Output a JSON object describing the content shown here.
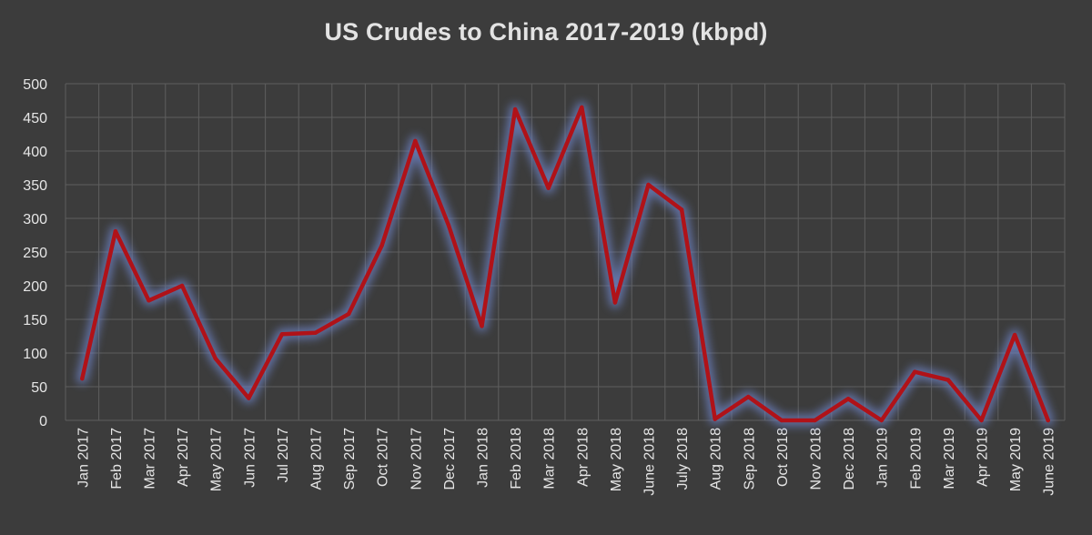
{
  "chart_data": {
    "type": "line",
    "title": "US Crudes to China 2017-2019 (kbpd)",
    "xlabel": "",
    "ylabel": "",
    "ylim": [
      0,
      500
    ],
    "yticks": [
      0,
      50,
      100,
      150,
      200,
      250,
      300,
      350,
      400,
      450,
      500
    ],
    "grid": true,
    "legend": "none",
    "categories": [
      "Jan 2017",
      "Feb 2017",
      "Mar 2017",
      "Apr 2017",
      "May 2017",
      "Jun 2017",
      "Jul 2017",
      "Aug 2017",
      "Sep 2017",
      "Oct 2017",
      "Nov 2017",
      "Dec 2017",
      "Jan 2018",
      "Feb 2018",
      "Mar 2018",
      "Apr 2018",
      "May 2018",
      "June 2018",
      "July 2018",
      "Aug 2018",
      "Sep 2018",
      "Oct 2018",
      "Nov 2018",
      "Dec 2018",
      "Jan 2019",
      "Feb 2019",
      "Mar 2019",
      "Apr 2019",
      "May 2019",
      "June 2019"
    ],
    "series": [
      {
        "values": [
          62,
          281,
          178,
          200,
          92,
          33,
          128,
          130,
          158,
          260,
          415,
          290,
          140,
          462,
          345,
          465,
          175,
          350,
          313,
          2,
          35,
          0,
          0,
          32,
          0,
          72,
          60,
          0,
          127,
          0
        ],
        "color": "#b01218",
        "glow": "#6d82c4"
      }
    ],
    "colors": {
      "background": "#3c3c3c",
      "grid": "#5e5e5e",
      "text": "#e6e6e6"
    }
  }
}
